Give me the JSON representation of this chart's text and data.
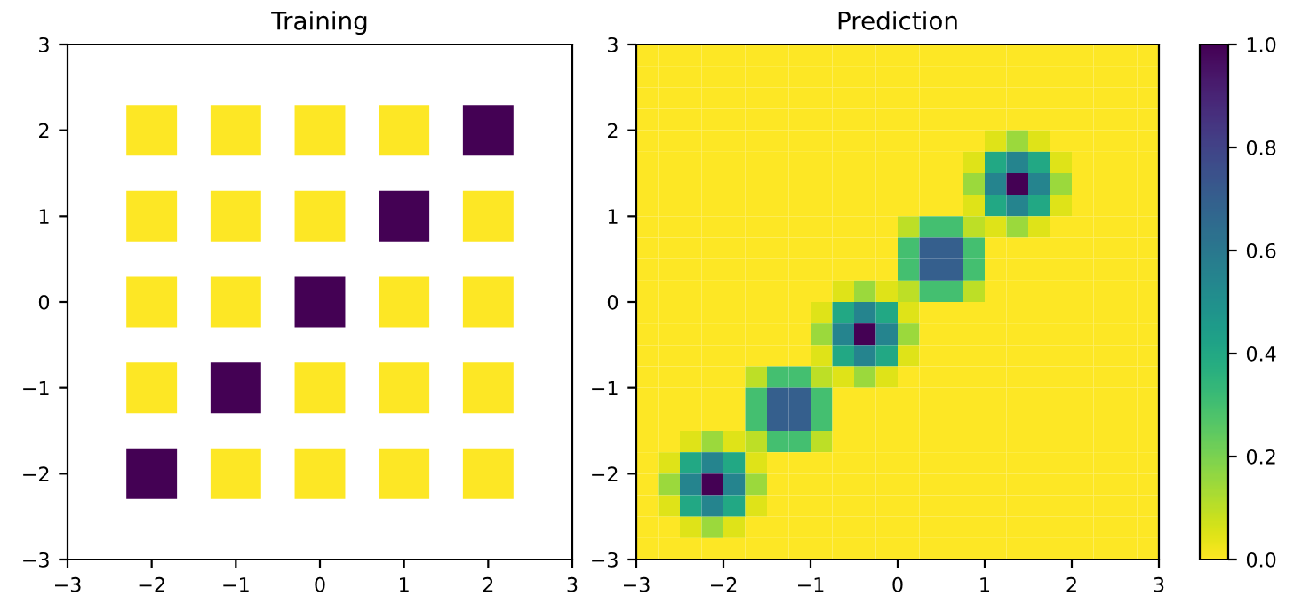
{
  "chart_data": [
    {
      "type": "scatter",
      "title": "Training",
      "marker": "square",
      "x": [
        -2,
        -1,
        0,
        1,
        2,
        -2,
        -1,
        0,
        1,
        2,
        -2,
        -1,
        0,
        1,
        2,
        -2,
        -1,
        0,
        1,
        2,
        -2,
        -1,
        0,
        1,
        2
      ],
      "values": [
        2,
        2,
        2,
        2,
        2,
        1,
        1,
        1,
        1,
        1,
        0,
        0,
        0,
        0,
        0,
        -1,
        -1,
        -1,
        -1,
        -1,
        -2,
        -2,
        -2,
        -2,
        -2
      ],
      "colors": [
        "#fde725",
        "#fde725",
        "#fde725",
        "#fde725",
        "#440154",
        "#fde725",
        "#fde725",
        "#fde725",
        "#440154",
        "#fde725",
        "#fde725",
        "#fde725",
        "#440154",
        "#fde725",
        "#fde725",
        "#fde725",
        "#440154",
        "#fde725",
        "#fde725",
        "#fde725",
        "#440154",
        "#fde725",
        "#fde725",
        "#fde725",
        "#fde725"
      ],
      "xlim": [
        -3,
        3
      ],
      "ylim": [
        -3,
        3
      ],
      "xticks": [
        {
          "value": -3,
          "label": "−3"
        },
        {
          "value": -2,
          "label": "−2"
        },
        {
          "value": -1,
          "label": "−1"
        },
        0,
        1,
        2,
        3
      ],
      "yticks": [
        {
          "value": -3,
          "label": "−3"
        },
        {
          "value": -2,
          "label": "−2"
        },
        {
          "value": -1,
          "label": "−1"
        },
        0,
        1,
        2,
        3
      ],
      "grid": false
    },
    {
      "type": "heatmap",
      "title": "Prediction",
      "xlim": [
        -3,
        3
      ],
      "ylim": [
        -3,
        3
      ],
      "xticks": [
        {
          "value": -3,
          "label": "−3"
        },
        {
          "value": -2,
          "label": "−2"
        },
        {
          "value": -1,
          "label": "−1"
        },
        0,
        1,
        2,
        3
      ],
      "yticks": [
        {
          "value": -3,
          "label": "−3"
        },
        {
          "value": -2,
          "label": "−2"
        },
        {
          "value": -1,
          "label": "−1"
        },
        0,
        1,
        2,
        3
      ],
      "clim": [
        0,
        1
      ],
      "cticks": [
        {
          "value": 0,
          "label": "0.0"
        },
        {
          "value": 0.2,
          "label": "0.2"
        },
        {
          "value": 0.4,
          "label": "0.4"
        },
        {
          "value": 0.6,
          "label": "0.6"
        },
        {
          "value": 0.8,
          "label": "0.8"
        },
        {
          "value": 1,
          "label": "1.0"
        }
      ],
      "cells": [
        [
          0,
          0,
          0,
          0,
          0,
          0,
          0,
          0,
          0,
          0,
          0,
          0,
          0,
          0,
          0,
          0,
          0,
          0,
          0,
          0,
          0,
          0,
          0,
          0
        ],
        [
          0,
          0,
          0,
          0,
          0,
          0,
          0,
          0,
          0,
          0,
          0,
          0,
          0,
          0,
          0,
          0,
          0,
          0,
          0,
          0,
          0,
          0,
          0,
          0
        ],
        [
          0,
          0,
          0,
          0,
          0,
          0,
          0,
          0,
          0,
          0,
          0,
          0,
          0,
          0,
          0,
          0,
          0,
          0,
          0,
          0,
          0,
          0,
          0,
          0
        ],
        [
          0,
          0,
          0,
          0,
          0,
          0,
          0,
          0,
          0,
          0,
          0,
          0,
          0,
          0,
          0,
          0,
          0,
          0,
          0,
          0,
          0,
          0,
          0,
          0
        ],
        [
          0,
          0,
          0,
          0,
          0,
          0,
          0,
          0,
          0,
          0,
          0,
          0,
          0,
          0,
          0,
          0,
          0.05,
          0.15,
          0.05,
          0,
          0,
          0,
          0,
          0
        ],
        [
          0,
          0,
          0,
          0,
          0,
          0,
          0,
          0,
          0,
          0,
          0,
          0,
          0,
          0,
          0,
          0.05,
          0.4,
          0.55,
          0.4,
          0.05,
          0,
          0,
          0,
          0
        ],
        [
          0,
          0,
          0,
          0,
          0,
          0,
          0,
          0,
          0,
          0,
          0,
          0,
          0,
          0,
          0,
          0.15,
          0.55,
          1,
          0.55,
          0.15,
          0,
          0,
          0,
          0
        ],
        [
          0,
          0,
          0,
          0,
          0,
          0,
          0,
          0,
          0,
          0,
          0,
          0,
          0,
          0,
          0,
          0.05,
          0.4,
          0.55,
          0.4,
          0.05,
          0,
          0,
          0,
          0
        ],
        [
          0,
          0,
          0,
          0,
          0,
          0,
          0,
          0,
          0,
          0,
          0,
          0,
          0.1,
          0.3,
          0.3,
          0.1,
          0.05,
          0.15,
          0.05,
          0,
          0,
          0,
          0,
          0
        ],
        [
          0,
          0,
          0,
          0,
          0,
          0,
          0,
          0,
          0,
          0,
          0,
          0,
          0.3,
          0.7,
          0.7,
          0.3,
          0,
          0,
          0,
          0,
          0,
          0,
          0,
          0
        ],
        [
          0,
          0,
          0,
          0,
          0,
          0,
          0,
          0,
          0,
          0,
          0,
          0,
          0.3,
          0.7,
          0.7,
          0.3,
          0,
          0,
          0,
          0,
          0,
          0,
          0,
          0
        ],
        [
          0,
          0,
          0,
          0,
          0,
          0,
          0,
          0,
          0,
          0.05,
          0.15,
          0.05,
          0.1,
          0.3,
          0.3,
          0.1,
          0,
          0,
          0,
          0,
          0,
          0,
          0,
          0
        ],
        [
          0,
          0,
          0,
          0,
          0,
          0,
          0,
          0,
          0.05,
          0.4,
          0.55,
          0.4,
          0.05,
          0,
          0,
          0,
          0,
          0,
          0,
          0,
          0,
          0,
          0,
          0
        ],
        [
          0,
          0,
          0,
          0,
          0,
          0,
          0,
          0,
          0.15,
          0.55,
          1,
          0.55,
          0.15,
          0,
          0,
          0,
          0,
          0,
          0,
          0,
          0,
          0,
          0,
          0
        ],
        [
          0,
          0,
          0,
          0,
          0,
          0,
          0,
          0,
          0.05,
          0.4,
          0.55,
          0.4,
          0.05,
          0,
          0,
          0,
          0,
          0,
          0,
          0,
          0,
          0,
          0,
          0
        ],
        [
          0,
          0,
          0,
          0,
          0,
          0.1,
          0.3,
          0.3,
          0.1,
          0.05,
          0.15,
          0.05,
          0,
          0,
          0,
          0,
          0,
          0,
          0,
          0,
          0,
          0,
          0,
          0
        ],
        [
          0,
          0,
          0,
          0,
          0,
          0.3,
          0.7,
          0.7,
          0.3,
          0,
          0,
          0,
          0,
          0,
          0,
          0,
          0,
          0,
          0,
          0,
          0,
          0,
          0,
          0
        ],
        [
          0,
          0,
          0,
          0,
          0,
          0.3,
          0.7,
          0.7,
          0.3,
          0,
          0,
          0,
          0,
          0,
          0,
          0,
          0,
          0,
          0,
          0,
          0,
          0,
          0,
          0
        ],
        [
          0,
          0,
          0.05,
          0.15,
          0.05,
          0.1,
          0.3,
          0.3,
          0.1,
          0,
          0,
          0,
          0,
          0,
          0,
          0,
          0,
          0,
          0,
          0,
          0,
          0,
          0,
          0
        ],
        [
          0,
          0.05,
          0.4,
          0.55,
          0.4,
          0.05,
          0,
          0,
          0,
          0,
          0,
          0,
          0,
          0,
          0,
          0,
          0,
          0,
          0,
          0,
          0,
          0,
          0,
          0
        ],
        [
          0,
          0.15,
          0.55,
          1,
          0.55,
          0.15,
          0,
          0,
          0,
          0,
          0,
          0,
          0,
          0,
          0,
          0,
          0,
          0,
          0,
          0,
          0,
          0,
          0,
          0
        ],
        [
          0,
          0.05,
          0.4,
          0.55,
          0.4,
          0.05,
          0,
          0,
          0,
          0,
          0,
          0,
          0,
          0,
          0,
          0,
          0,
          0,
          0,
          0,
          0,
          0,
          0,
          0
        ],
        [
          0,
          0,
          0.05,
          0.15,
          0.05,
          0,
          0,
          0,
          0,
          0,
          0,
          0,
          0,
          0,
          0,
          0,
          0,
          0,
          0,
          0,
          0,
          0,
          0,
          0
        ],
        [
          0,
          0,
          0,
          0,
          0,
          0,
          0,
          0,
          0,
          0,
          0,
          0,
          0,
          0,
          0,
          0,
          0,
          0,
          0,
          0,
          0,
          0,
          0,
          0
        ]
      ]
    }
  ]
}
